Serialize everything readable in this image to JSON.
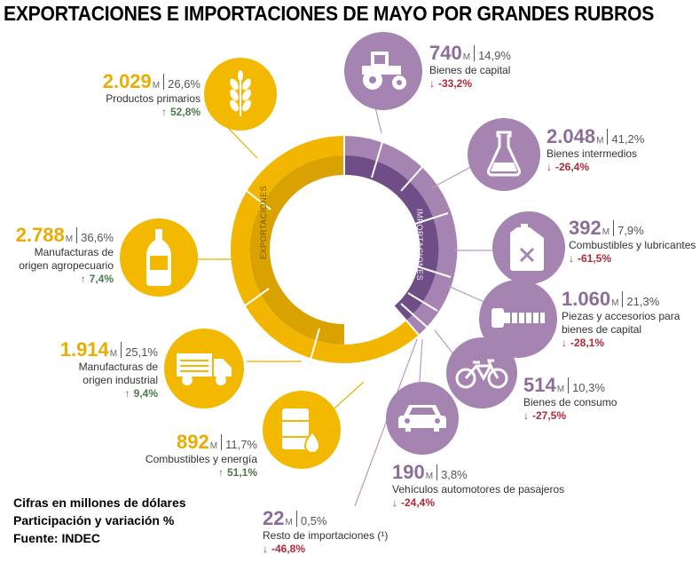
{
  "title": "EXPORTACIONES E IMPORTACIONES DE MAYO POR GRANDES RUBROS",
  "ring": {
    "exports_label": "EXPORTACIONES",
    "imports_label": "IMPORTACIONES"
  },
  "colors": {
    "exports": "#f3b800",
    "imports": "#a684b2",
    "up": "#4a7a4a",
    "down": "#b02a3a"
  },
  "exports": [
    {
      "value": "2.029",
      "unit": "M",
      "share": "26,6%",
      "name_lines": [
        "Productos primarios"
      ],
      "change": "52,8%",
      "direction": "up",
      "icon": "wheat-icon"
    },
    {
      "value": "2.788",
      "unit": "M",
      "share": "36,6%",
      "name_lines": [
        "Manufacturas de",
        "origen agropecuario"
      ],
      "change": "7,4%",
      "direction": "up",
      "icon": "bottle-icon"
    },
    {
      "value": "1.914",
      "unit": "M",
      "share": "25,1%",
      "name_lines": [
        "Manufacturas de",
        "origen industrial"
      ],
      "change": "9,4%",
      "direction": "up",
      "icon": "truck-icon"
    },
    {
      "value": "892",
      "unit": "M",
      "share": "11,7%",
      "name_lines": [
        "Combustibles y energía"
      ],
      "change": "51,1%",
      "direction": "up",
      "icon": "fuel-barrel-icon"
    }
  ],
  "imports": [
    {
      "value": "740",
      "unit": "M",
      "share": "14,9%",
      "name_lines": [
        "Bienes de capital"
      ],
      "change": "-33,2%",
      "direction": "down",
      "icon": "tractor-icon"
    },
    {
      "value": "2.048",
      "unit": "M",
      "share": "41,2%",
      "name_lines": [
        "Bienes intermedios"
      ],
      "change": "-26,4%",
      "direction": "down",
      "icon": "flask-icon"
    },
    {
      "value": "392",
      "unit": "M",
      "share": "7,9%",
      "name_lines": [
        "Combustibles y lubricantes"
      ],
      "change": "-61,5%",
      "direction": "down",
      "icon": "jerrycan-icon"
    },
    {
      "value": "1.060",
      "unit": "M",
      "share": "21,3%",
      "name_lines": [
        "Piezas y accesorios para",
        "bienes de capital"
      ],
      "change": "-28,1%",
      "direction": "down",
      "icon": "bolt-icon"
    },
    {
      "value": "514",
      "unit": "M",
      "share": "10,3%",
      "name_lines": [
        "Bienes de consumo"
      ],
      "change": "-27,5%",
      "direction": "down",
      "icon": "bicycle-icon"
    },
    {
      "value": "190",
      "unit": "M",
      "share": "3,8%",
      "name_lines": [
        "Vehículos automotores de pasajeros"
      ],
      "change": "-24,4%",
      "direction": "down",
      "icon": "car-icon"
    },
    {
      "value": "22",
      "unit": "M",
      "share": "0,5%",
      "name_lines": [
        "Resto de importaciones (¹)"
      ],
      "change": "-46,8%",
      "direction": "down",
      "icon": ""
    }
  ],
  "footer": [
    "Cifras en millones de dólares",
    "Participación y variación %",
    "Fuente: INDEC"
  ]
}
